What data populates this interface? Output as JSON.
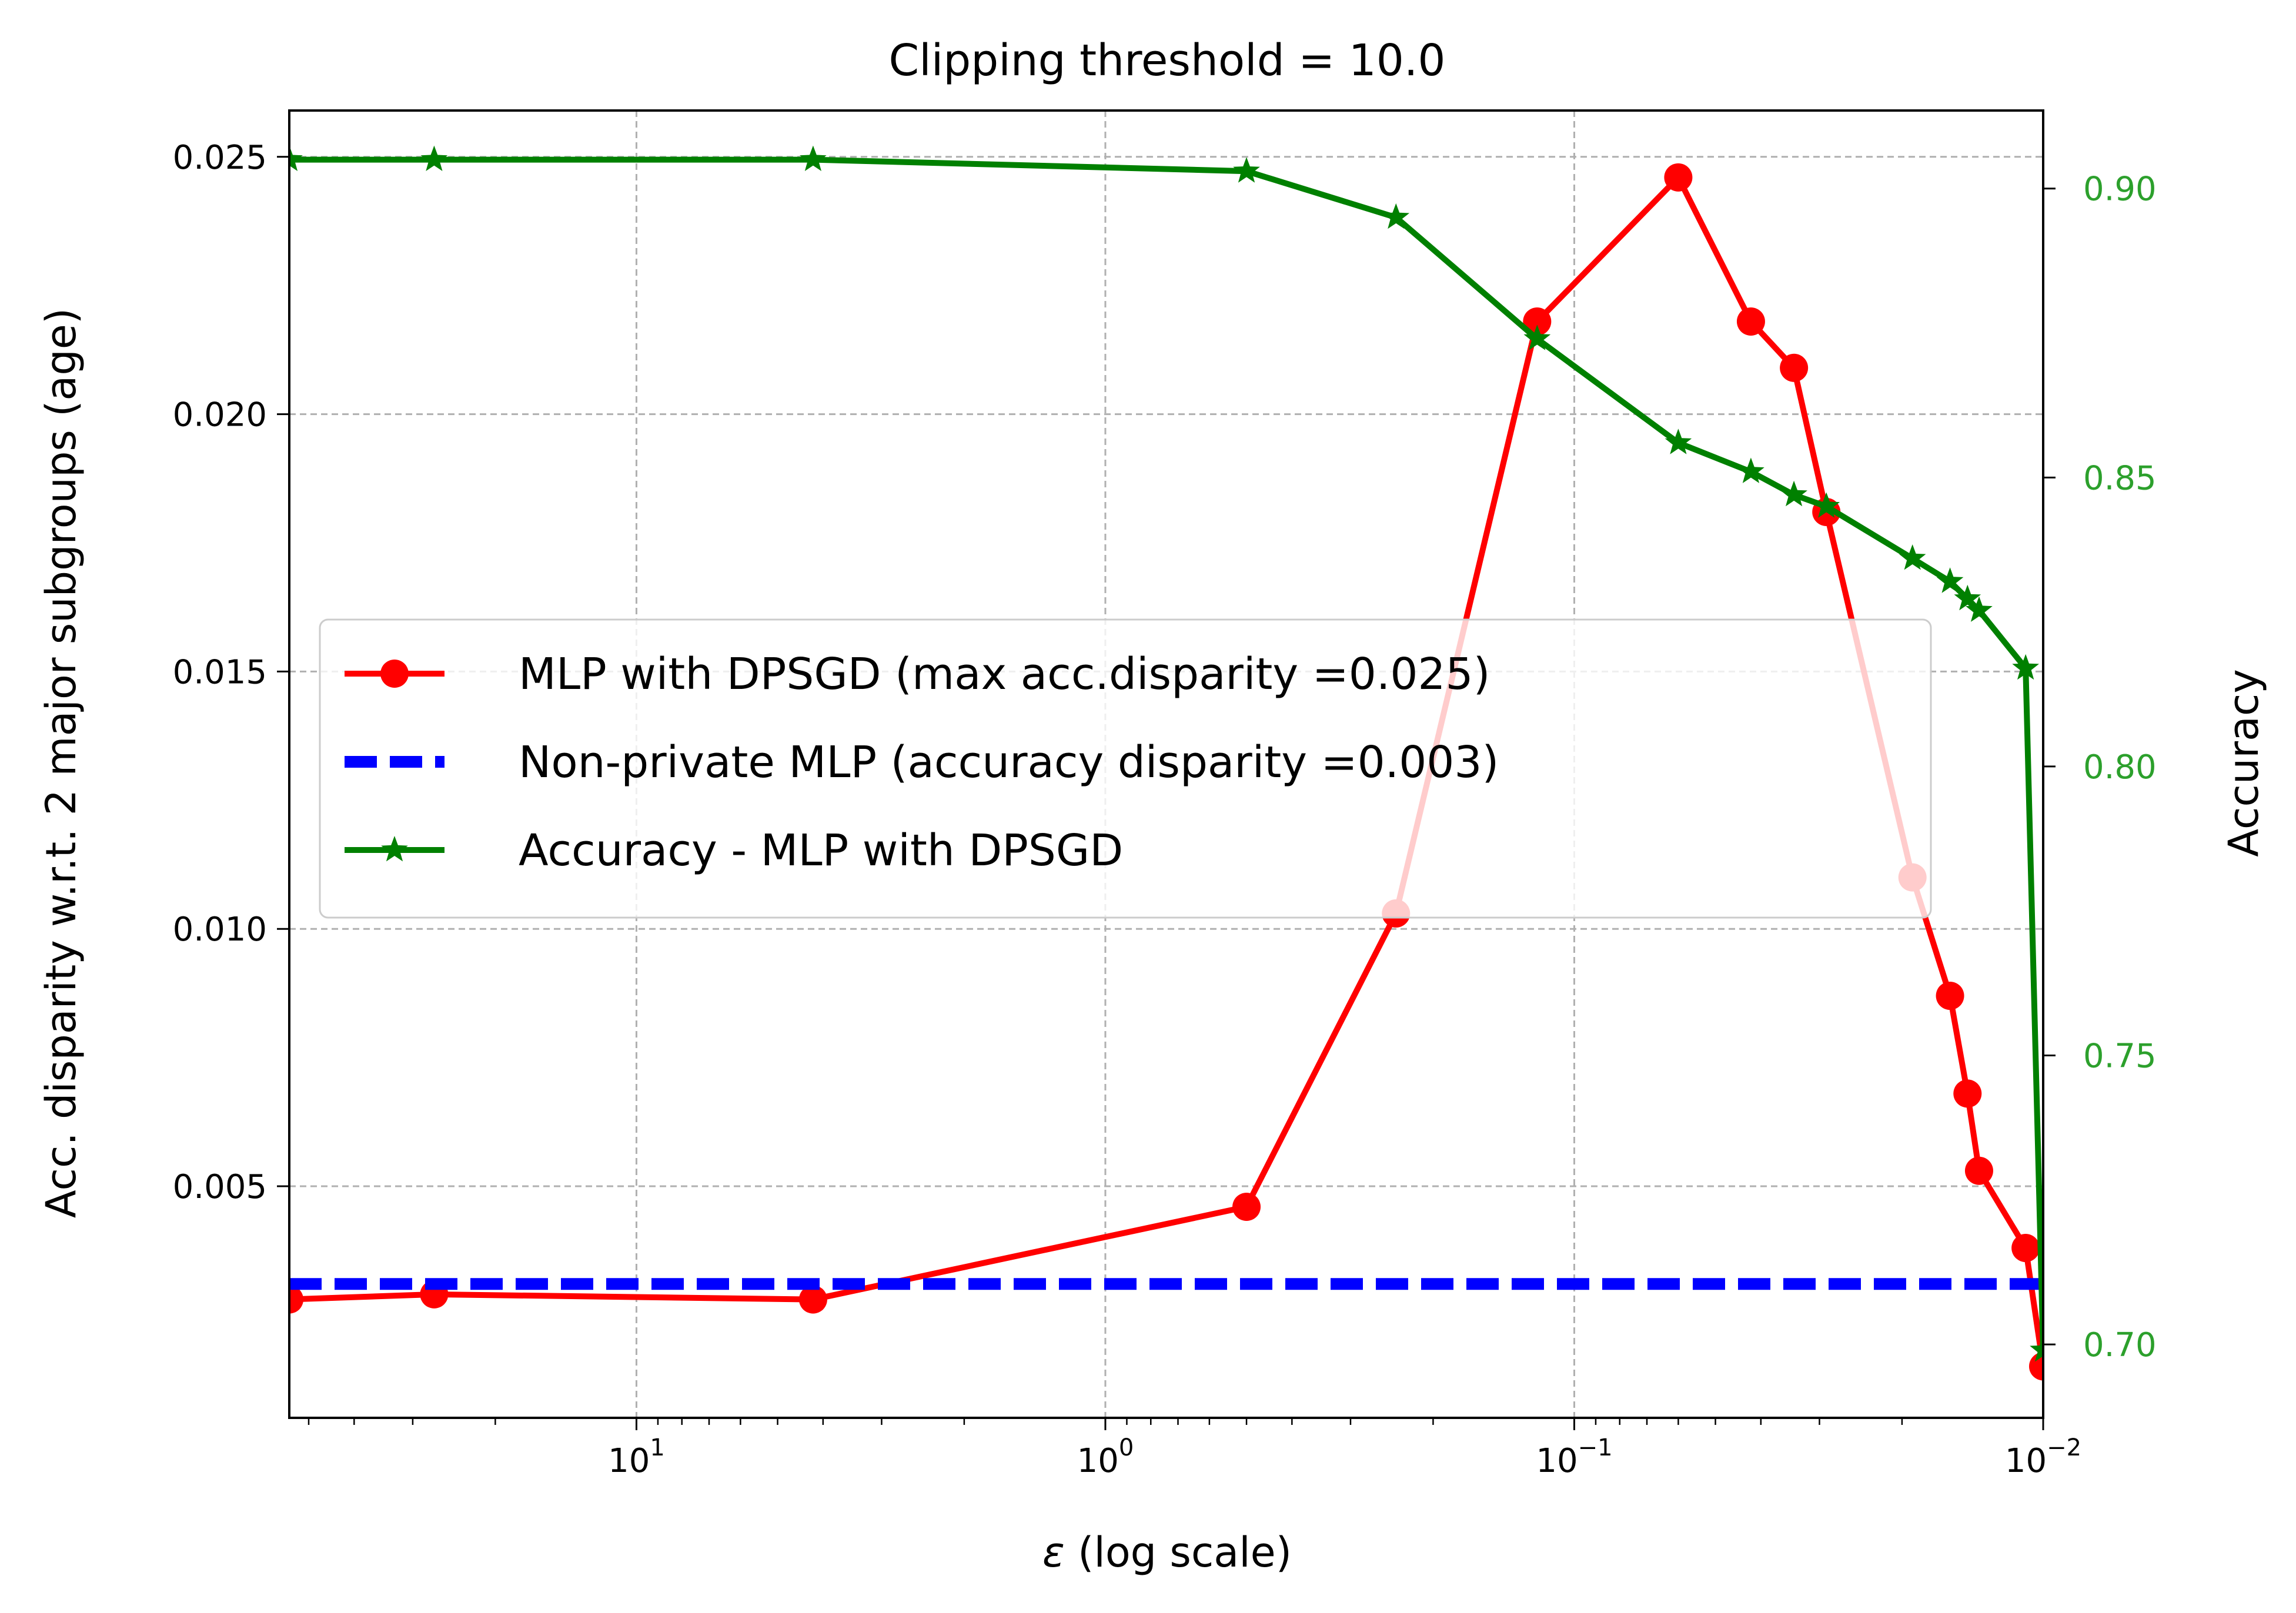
{
  "chart_data": {
    "type": "line",
    "title": "Clipping threshold = 10.0",
    "xlabel": "(log scale)",
    "xlabel_symbol": "ε",
    "ylabel": "Acc. disparity w.r.t. 2 major subgroups (age)",
    "ylabel_right": "Accuracy",
    "x_scale": "log",
    "x_inverted": true,
    "xlim": [
      55,
      0.01
    ],
    "ylim": [
      0.0005,
      0.0259
    ],
    "ylim_right": [
      0.6873,
      0.9135
    ],
    "x_ticks": [
      {
        "value": 10,
        "base": "10",
        "exp": "1"
      },
      {
        "value": 1,
        "base": "10",
        "exp": "0"
      },
      {
        "value": 0.1,
        "base": "10",
        "exp": "−1"
      },
      {
        "value": 0.01,
        "base": "10",
        "exp": "−2"
      }
    ],
    "y_ticks": [
      "0.005",
      "0.010",
      "0.015",
      "0.020",
      "0.025"
    ],
    "y_tick_values": [
      0.005,
      0.01,
      0.015,
      0.02,
      0.025
    ],
    "y_ticks_right": [
      "0.70",
      "0.75",
      "0.80",
      "0.85",
      "0.90"
    ],
    "y_tick_values_right": [
      0.7,
      0.75,
      0.8,
      0.85,
      0.9
    ],
    "grid": true,
    "legend_position": "center-left",
    "colors": {
      "disparity": "#ff0000",
      "baseline": "#0000ff",
      "accuracy": "#008000",
      "right_axis": "#2ca02c",
      "grid": "#b0b0b0"
    },
    "series": [
      {
        "name": "MLP with DPSGD (max acc.disparity =0.025)",
        "axis": "left",
        "marker": "circle",
        "x": [
          55,
          27,
          4.2,
          0.5,
          0.24,
          0.12,
          0.06,
          0.042,
          0.034,
          0.029,
          0.019,
          0.0158,
          0.0145,
          0.0137,
          0.0109,
          0.01
        ],
        "y": [
          0.0028,
          0.0029,
          0.0028,
          0.0046,
          0.0103,
          0.0218,
          0.0246,
          0.0218,
          0.0209,
          0.0181,
          0.011,
          0.0087,
          0.0068,
          0.0053,
          0.0038,
          0.0015
        ]
      },
      {
        "name": "Non-private MLP (accuracy disparity =0.003)",
        "axis": "left",
        "marker": "none",
        "dashed": true,
        "x": [
          55,
          0.01
        ],
        "y": [
          0.0031,
          0.0031
        ]
      },
      {
        "name": "Accuracy - MLP with DPSGD",
        "axis": "right",
        "marker": "star",
        "x": [
          55,
          27,
          4.2,
          0.5,
          0.24,
          0.12,
          0.06,
          0.042,
          0.034,
          0.029,
          0.019,
          0.0158,
          0.0145,
          0.0137,
          0.0109,
          0.01
        ],
        "y": [
          0.905,
          0.905,
          0.905,
          0.903,
          0.895,
          0.874,
          0.856,
          0.851,
          0.847,
          0.845,
          0.836,
          0.832,
          0.829,
          0.827,
          0.817,
          0.699
        ]
      }
    ]
  }
}
